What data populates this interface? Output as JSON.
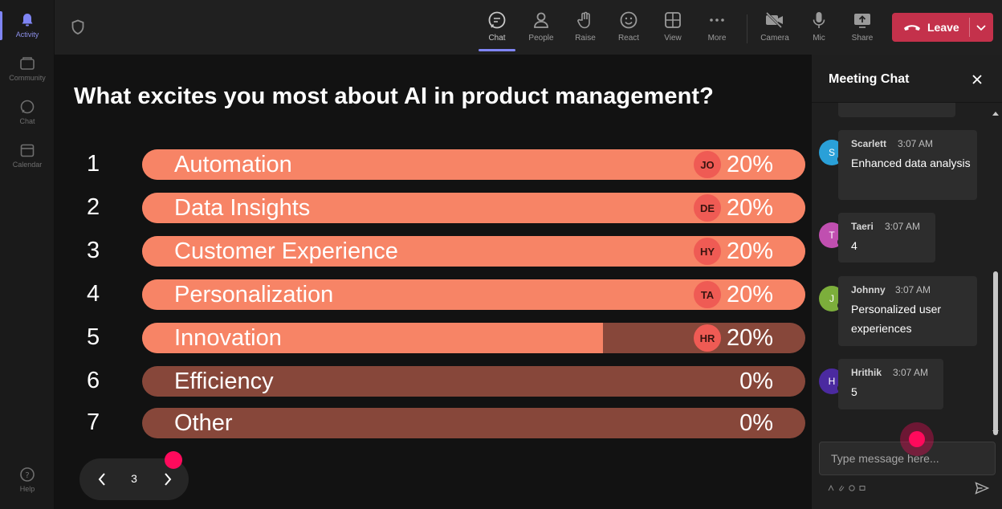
{
  "rail": {
    "items": [
      {
        "label": "Activity",
        "icon": "bell-icon",
        "active": true
      },
      {
        "label": "Community",
        "icon": "community-icon"
      },
      {
        "label": "Chat",
        "icon": "chat-icon"
      },
      {
        "label": "Calendar",
        "icon": "calendar-icon"
      }
    ],
    "help": "Help"
  },
  "toolbar": {
    "items": [
      {
        "label": "Chat",
        "icon": "chat-bubble-icon",
        "active": true
      },
      {
        "label": "People",
        "icon": "people-icon"
      },
      {
        "label": "Raise",
        "icon": "raise-hand-icon"
      },
      {
        "label": "React",
        "icon": "react-emoji-icon"
      },
      {
        "label": "View",
        "icon": "view-grid-icon"
      },
      {
        "label": "More",
        "icon": "more-icon"
      },
      {
        "label": "Camera",
        "icon": "camera-off-icon"
      },
      {
        "label": "Mic",
        "icon": "mic-icon"
      },
      {
        "label": "Share",
        "icon": "share-icon"
      }
    ],
    "leave_label": "Leave"
  },
  "poll": {
    "question": "What excites you most about AI in product management?",
    "options": [
      {
        "num": "1",
        "label": "Automation",
        "percent": "20%",
        "fill": 1.0,
        "avatar": "JO"
      },
      {
        "num": "2",
        "label": "Data Insights",
        "percent": "20%",
        "fill": 1.0,
        "avatar": "DE"
      },
      {
        "num": "3",
        "label": "Customer Experience",
        "percent": "20%",
        "fill": 1.0,
        "avatar": "HY"
      },
      {
        "num": "4",
        "label": "Personalization",
        "percent": "20%",
        "fill": 1.0,
        "avatar": "TA"
      },
      {
        "num": "5",
        "label": "Innovation",
        "percent": "20%",
        "fill": 0.695,
        "avatar": "HR"
      },
      {
        "num": "6",
        "label": "Efficiency",
        "percent": "0%",
        "fill": 0,
        "avatar": ""
      },
      {
        "num": "7",
        "label": "Other",
        "percent": "0%",
        "fill": 0,
        "avatar": ""
      }
    ],
    "page": "3"
  },
  "chat": {
    "title": "Meeting Chat",
    "messages": [
      {
        "initial": "S",
        "author": "Scarlett",
        "time": "3:07 AM",
        "text": "Enhanced data analysis",
        "color": "#2aa0d8"
      },
      {
        "initial": "T",
        "author": "Taeri",
        "time": "3:07 AM",
        "text": "4",
        "color": "#c04fb0"
      },
      {
        "initial": "J",
        "author": "Johnny",
        "time": "3:07 AM",
        "text": "Personalized user experiences",
        "color": "#7cae3b"
      },
      {
        "initial": "H",
        "author": "Hrithik",
        "time": "3:07 AM",
        "text": "5",
        "color": "#4b2aa0"
      }
    ],
    "input_placeholder": "Type message here..."
  },
  "colors": {
    "bar_fill": "#f78466",
    "bar_track": "#87473a",
    "leave": "#c4314b",
    "accent": "#7f85f5",
    "cursor_dot": "#ff0a5c"
  }
}
